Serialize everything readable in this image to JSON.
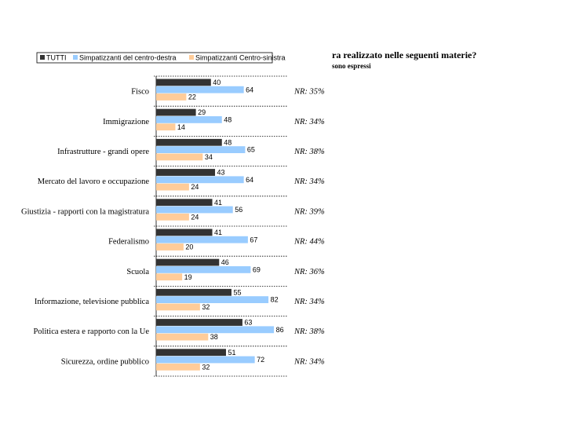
{
  "header": {
    "question": "ra realizzato nelle seguenti materie?",
    "note": "sono espressi"
  },
  "chart_data": {
    "type": "bar",
    "orientation": "horizontal",
    "categories": [
      "Fisco",
      "Immigrazione",
      "Infrastrutture - grandi opere",
      "Mercato del lavoro e occupazione",
      "Giustizia - rapporti con la magistratura",
      "Federalismo",
      "Scuola",
      "Informazione, televisione pubblica",
      "Politica estera e rapporto con la Ue",
      "Sicurezza, ordine pubblico"
    ],
    "series": [
      {
        "name": "TUTTI",
        "color": "#333333",
        "values": [
          40,
          29,
          48,
          43,
          41,
          41,
          46,
          55,
          63,
          51
        ]
      },
      {
        "name": "Simpatizzanti del centro-destra",
        "color": "#99ccff",
        "values": [
          64,
          48,
          65,
          64,
          56,
          67,
          69,
          82,
          86,
          72
        ]
      },
      {
        "name": "Simpatizzanti Centro-sinistra",
        "color": "#ffcc99",
        "values": [
          22,
          14,
          34,
          24,
          24,
          20,
          19,
          32,
          38,
          32
        ]
      }
    ],
    "nr_labels": [
      "NR: 35%",
      "NR: 34%",
      "NR: 38%",
      "NR: 34%",
      "NR: 39%",
      "NR: 44%",
      "NR: 36%",
      "NR: 34%",
      "NR: 38%",
      "NR: 34%"
    ],
    "legend_position": "top-left",
    "xlim": [
      0,
      100
    ],
    "grid": false
  }
}
